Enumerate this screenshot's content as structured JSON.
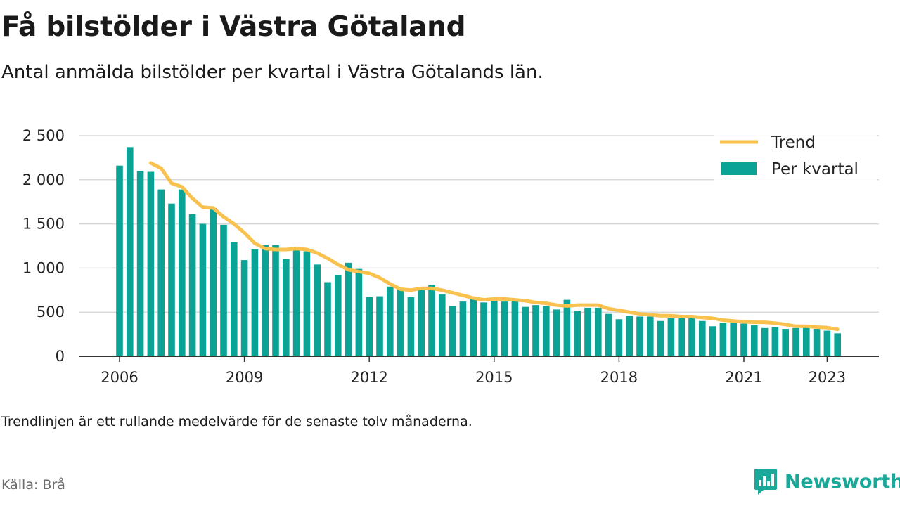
{
  "title": "Få bilstölder i Västra Götaland",
  "subtitle": "Antal anmälda bilstölder per kvartal i Västra Götalands län.",
  "note": "Trendlinjen är ett rullande medelvärde för de senaste tolv månaderna.",
  "source": "Källa: Brå",
  "brand": {
    "name": "Newsworthy",
    "icon": "newsworthy-logo-icon",
    "color": "#1aa898"
  },
  "colors": {
    "bars": "#0aa396",
    "trend": "#f9c14e",
    "grid": "#d9d9d9",
    "axis": "#333333"
  },
  "chart_data": {
    "type": "bar",
    "x": [
      2006.0,
      2006.25,
      2006.5,
      2006.75,
      2007.0,
      2007.25,
      2007.5,
      2007.75,
      2008.0,
      2008.25,
      2008.5,
      2008.75,
      2009.0,
      2009.25,
      2009.5,
      2009.75,
      2010.0,
      2010.25,
      2010.5,
      2010.75,
      2011.0,
      2011.25,
      2011.5,
      2011.75,
      2012.0,
      2012.25,
      2012.5,
      2012.75,
      2013.0,
      2013.25,
      2013.5,
      2013.75,
      2014.0,
      2014.25,
      2014.5,
      2014.75,
      2015.0,
      2015.25,
      2015.5,
      2015.75,
      2016.0,
      2016.25,
      2016.5,
      2016.75,
      2017.0,
      2017.25,
      2017.5,
      2017.75,
      2018.0,
      2018.25,
      2018.5,
      2018.75,
      2019.0,
      2019.25,
      2019.5,
      2019.75,
      2020.0,
      2020.25,
      2020.5,
      2020.75,
      2021.0,
      2021.25,
      2021.5,
      2021.75,
      2022.0,
      2022.25,
      2022.5,
      2022.75,
      2023.0,
      2023.25
    ],
    "series": [
      {
        "name": "Per kvartal",
        "values": [
          2160,
          2370,
          2100,
          2090,
          1890,
          1730,
          1890,
          1610,
          1500,
          1680,
          1490,
          1290,
          1090,
          1210,
          1260,
          1260,
          1100,
          1220,
          1190,
          1040,
          840,
          920,
          1060,
          990,
          670,
          680,
          790,
          770,
          670,
          770,
          810,
          700,
          570,
          620,
          670,
          610,
          630,
          620,
          630,
          560,
          580,
          570,
          530,
          640,
          510,
          550,
          550,
          480,
          420,
          460,
          450,
          450,
          400,
          430,
          460,
          430,
          400,
          340,
          380,
          380,
          370,
          350,
          320,
          330,
          310,
          320,
          330,
          310,
          290,
          260
        ]
      },
      {
        "name": "Trend",
        "x": [
          2006.75,
          2007.0,
          2007.25,
          2007.5,
          2007.75,
          2008.0,
          2008.25,
          2008.5,
          2008.75,
          2009.0,
          2009.25,
          2009.5,
          2009.75,
          2010.0,
          2010.25,
          2010.5,
          2010.75,
          2011.0,
          2011.25,
          2011.5,
          2011.75,
          2012.0,
          2012.25,
          2012.5,
          2012.75,
          2013.0,
          2013.25,
          2013.5,
          2013.75,
          2014.0,
          2014.25,
          2014.5,
          2014.75,
          2015.0,
          2015.25,
          2015.5,
          2015.75,
          2016.0,
          2016.25,
          2016.5,
          2016.75,
          2017.0,
          2017.25,
          2017.5,
          2017.75,
          2018.0,
          2018.25,
          2018.5,
          2018.75,
          2019.0,
          2019.25,
          2019.5,
          2019.75,
          2020.0,
          2020.25,
          2020.5,
          2020.75,
          2021.0,
          2021.25,
          2021.5,
          2021.75,
          2022.0,
          2022.25,
          2022.5,
          2022.75,
          2023.0,
          2023.25
        ],
        "values": [
          2190,
          2130,
          1960,
          1920,
          1790,
          1690,
          1680,
          1580,
          1500,
          1400,
          1280,
          1220,
          1210,
          1210,
          1220,
          1210,
          1170,
          1110,
          1040,
          980,
          960,
          940,
          890,
          820,
          760,
          750,
          770,
          770,
          750,
          720,
          690,
          660,
          640,
          650,
          650,
          640,
          630,
          610,
          600,
          580,
          570,
          580,
          580,
          580,
          540,
          520,
          500,
          480,
          470,
          460,
          460,
          450,
          450,
          440,
          430,
          410,
          400,
          390,
          385,
          385,
          375,
          360,
          340,
          340,
          330,
          325,
          305
        ]
      }
    ],
    "ylim": [
      0,
      2500
    ],
    "xlim": [
      2005.6,
      2023.55
    ],
    "yticks": [
      0,
      500,
      1000,
      1500,
      2000,
      2500
    ],
    "ytick_labels": [
      "0",
      "500",
      "1 000",
      "1 500",
      "2 000",
      "2 500"
    ],
    "xticks": [
      2006,
      2009,
      2012,
      2015,
      2018,
      2021,
      2023
    ],
    "xtick_labels": [
      "2006",
      "2009",
      "2012",
      "2015",
      "2018",
      "2021",
      "2023"
    ],
    "legend": {
      "position": "top-right",
      "items": [
        "Trend",
        "Per kvartal"
      ]
    },
    "grid": true
  }
}
